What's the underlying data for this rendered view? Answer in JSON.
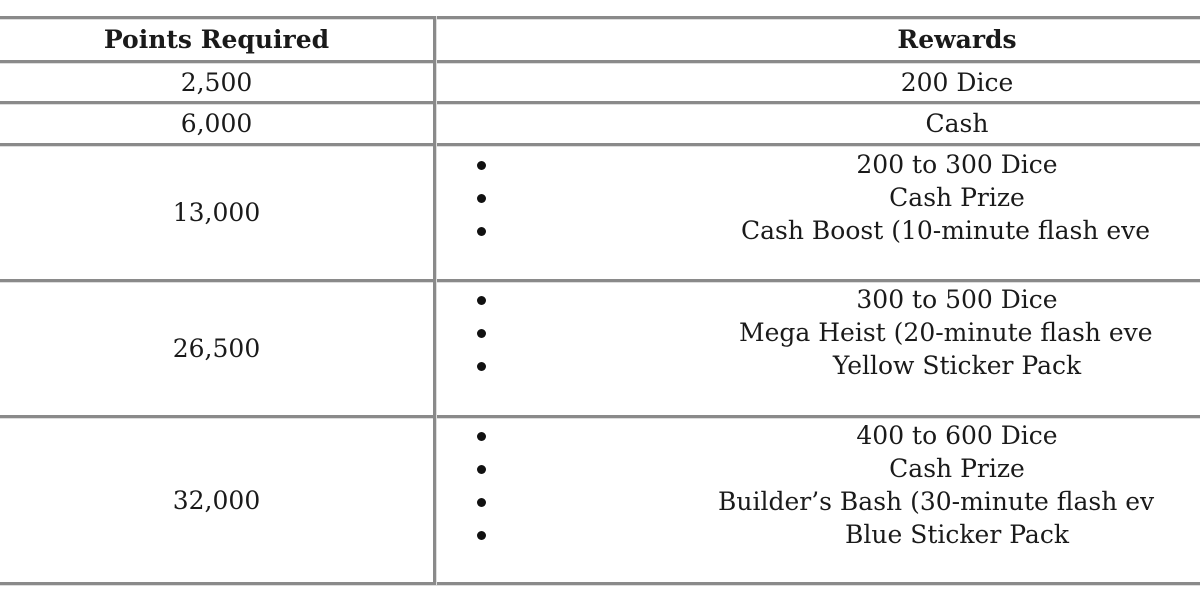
{
  "table": {
    "headers": {
      "points": "Points Required",
      "rewards": "Rewards"
    },
    "rows": [
      {
        "points": "2,500",
        "rewards": [
          "200 Dice"
        ],
        "list": false
      },
      {
        "points": "6,000",
        "rewards": [
          "Cash"
        ],
        "list": false
      },
      {
        "points": "13,000",
        "rewards": [
          "200 to 300 Dice",
          "Cash Prize",
          "Cash Boost (10-minute flash eve"
        ],
        "list": true
      },
      {
        "points": "26,500",
        "rewards": [
          "300 to 500 Dice",
          "Mega Heist (20-minute flash eve",
          "Yellow Sticker Pack"
        ],
        "list": true
      },
      {
        "points": "32,000",
        "rewards": [
          "400 to 600 Dice",
          "Cash Prize",
          "Builder’s Bash (30-minute flash ev",
          "Blue Sticker Pack"
        ],
        "list": true
      }
    ]
  }
}
